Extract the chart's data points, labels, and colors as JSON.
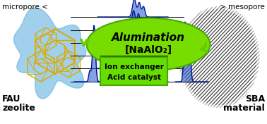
{
  "title_text": "Alumination",
  "title_sub": "[NaAlO₂]",
  "left_label1": "micropore <",
  "left_label2": "FAU",
  "left_label3": "zeolite",
  "right_label1": "> mesopore",
  "right_label2": "SBA",
  "right_label3": "material",
  "box_text1": "Ion exchanger",
  "box_text2": "Acid catalyst",
  "bg_color": "#ffffff",
  "green_ellipse": "#77dd00",
  "green_dark": "#44aa00",
  "box_green": "#66dd00",
  "blue_fill": "#2255cc",
  "arrow_green": "#66cc00",
  "fau_yellow": "#ddaa00",
  "fau_blue": "#55aadd",
  "stripe_color": "#222222"
}
